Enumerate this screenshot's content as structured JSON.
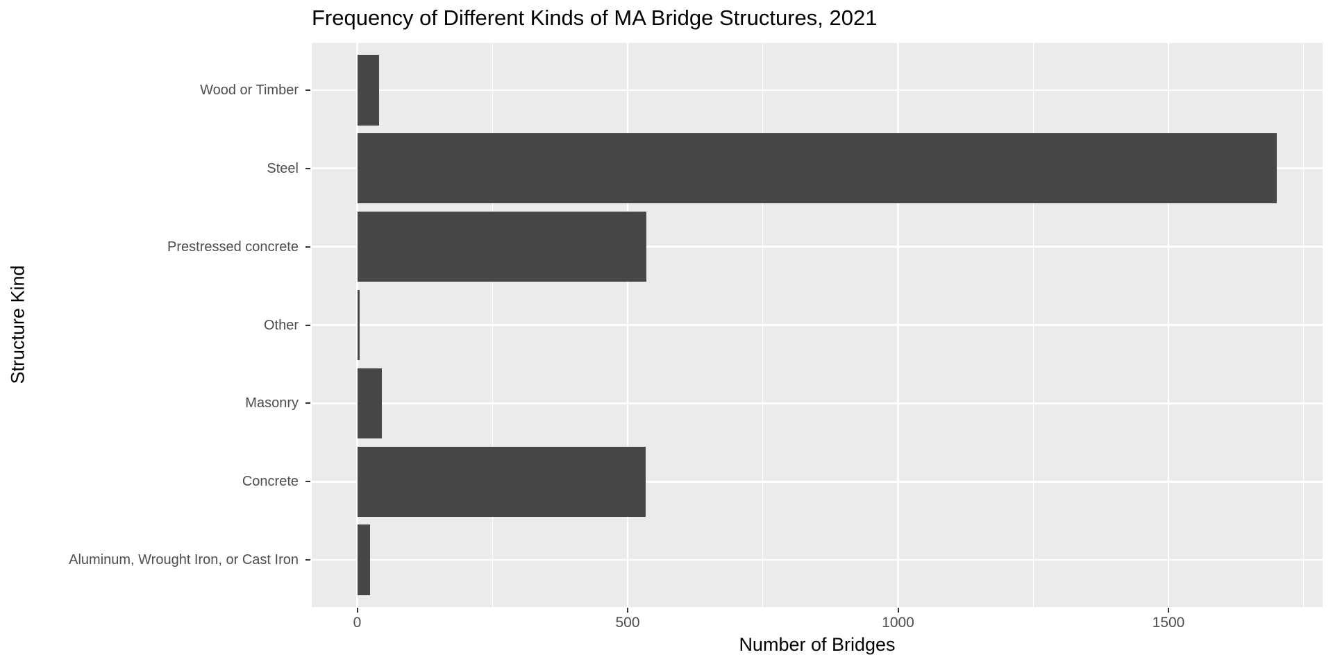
{
  "title": "Frequency of Different Kinds of MA Bridge Structures, 2021",
  "chart_data": {
    "type": "bar",
    "orientation": "horizontal",
    "title": "Frequency of Different Kinds of MA Bridge Structures, 2021",
    "xlabel": "Number of Bridges",
    "ylabel": "Structure Kind",
    "categories": [
      "Wood or Timber",
      "Steel",
      "Prestressed concrete",
      "Other",
      "Masonry",
      "Concrete",
      "Aluminum, Wrought Iron, or Cast Iron"
    ],
    "values": [
      40,
      1700,
      535,
      4,
      45,
      533,
      24
    ],
    "x_ticks": [
      0,
      500,
      1000,
      1500
    ],
    "x_tick_labels": [
      "0",
      "500",
      "1000",
      "1500"
    ],
    "x_minor_ticks": [
      250,
      750,
      1250,
      1750
    ],
    "xlim": [
      -85,
      1785
    ],
    "grid": true,
    "legend": false,
    "theme": "ggplot-gray",
    "colors": {
      "bar": "#474747",
      "panel_background": "#EBEBEB",
      "gridline": "#FFFFFF",
      "tick_label": "#4D4D4D",
      "axis_title": "#000000",
      "title": "#000000",
      "tick_mark": "#333333"
    }
  }
}
